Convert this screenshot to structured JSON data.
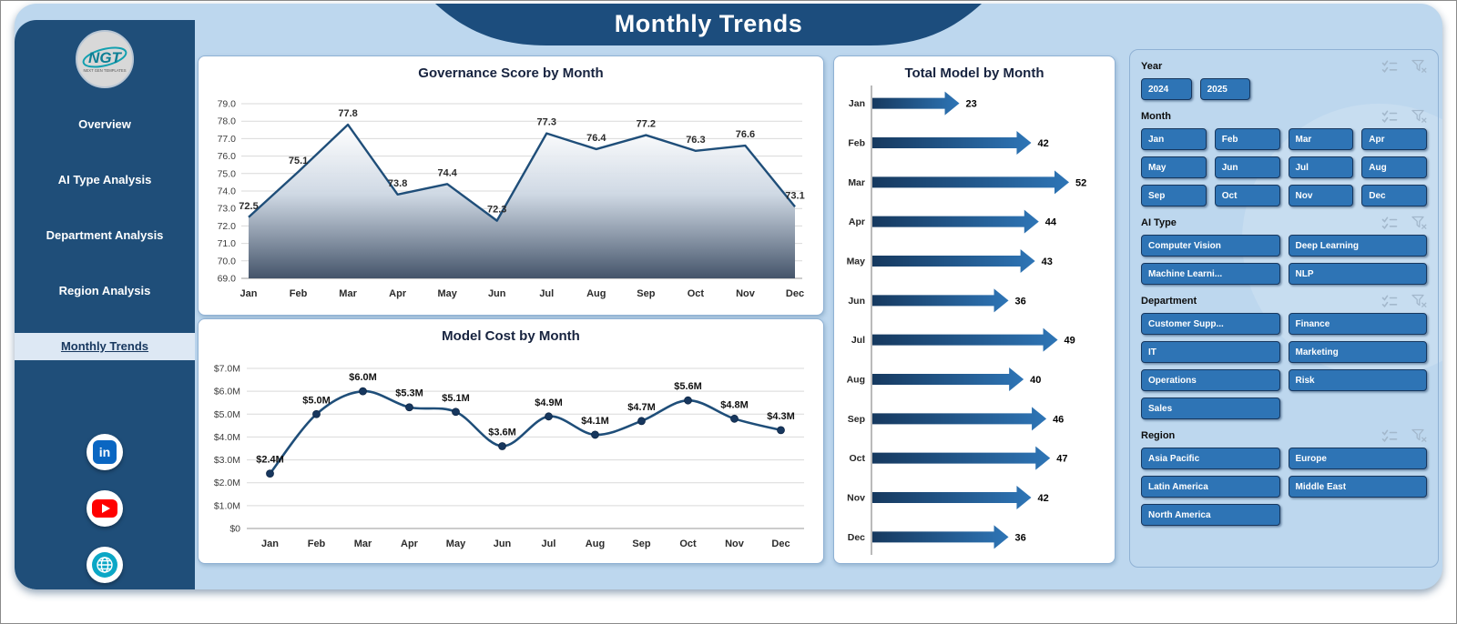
{
  "header": {
    "title": "Monthly Trends"
  },
  "theme": {
    "background": "#bdd7ee",
    "sidebar": "#1f4e79",
    "banner": "#1c4d7d",
    "button": "#2e74b5",
    "button_border": "#17375e",
    "panel_border": "#8fb1d4",
    "accent_text": "#17233f"
  },
  "sidebar": {
    "logo_text": "NGT",
    "logo_subtext": "NEXT GEN TEMPLATES",
    "items": [
      {
        "label": "Overview",
        "active": false
      },
      {
        "label": "AI Type Analysis",
        "active": false
      },
      {
        "label": "Department Analysis",
        "active": false
      },
      {
        "label": "Region Analysis",
        "active": false
      },
      {
        "label": "Monthly Trends",
        "active": true
      }
    ],
    "social": [
      {
        "name": "linkedin"
      },
      {
        "name": "youtube"
      },
      {
        "name": "website"
      }
    ]
  },
  "chart_data": [
    {
      "type": "area",
      "title": "Governance Score by Month",
      "categories": [
        "Jan",
        "Feb",
        "Mar",
        "Apr",
        "May",
        "Jun",
        "Jul",
        "Aug",
        "Sep",
        "Oct",
        "Nov",
        "Dec"
      ],
      "values": [
        72.5,
        75.1,
        77.8,
        73.8,
        74.4,
        72.3,
        77.3,
        76.4,
        77.2,
        76.3,
        76.6,
        73.1
      ],
      "labels": [
        "72.5",
        "75.1",
        "77.8",
        "73.8",
        "74.4",
        "72.3",
        "77.3",
        "76.4",
        "77.2",
        "76.3",
        "76.6",
        "73.1"
      ],
      "ylim": [
        69,
        79
      ],
      "yticks": [
        "69.0",
        "70.0",
        "71.0",
        "72.0",
        "73.0",
        "74.0",
        "75.0",
        "76.0",
        "77.0",
        "78.0",
        "79.0"
      ],
      "grid": true,
      "legend": "none",
      "line_color": "#1f4e79",
      "area_top_color": "#ffffff",
      "area_bottom_color": "#44546a"
    },
    {
      "type": "line",
      "title": "Model Cost by Month",
      "categories": [
        "Jan",
        "Feb",
        "Mar",
        "Apr",
        "May",
        "Jun",
        "Jul",
        "Aug",
        "Sep",
        "Oct",
        "Nov",
        "Dec"
      ],
      "values": [
        2.4,
        5.0,
        6.0,
        5.3,
        5.1,
        3.6,
        4.9,
        4.1,
        4.7,
        5.6,
        4.8,
        4.3
      ],
      "labels": [
        "$2.4M",
        "$5.0M",
        "$6.0M",
        "$5.3M",
        "$5.1M",
        "$3.6M",
        "$4.9M",
        "$4.1M",
        "$4.7M",
        "$5.6M",
        "$4.8M",
        "$4.3M"
      ],
      "ylim": [
        0,
        7
      ],
      "yticks": [
        "$0",
        "$1.0M",
        "$2.0M",
        "$3.0M",
        "$4.0M",
        "$5.0M",
        "$6.0M",
        "$7.0M"
      ],
      "grid": true,
      "legend": "none",
      "line_color": "#1f4e79",
      "marker_color": "#17375e"
    },
    {
      "type": "bar",
      "orientation": "horizontal-arrow",
      "title": "Total Model by Month",
      "categories": [
        "Jan",
        "Feb",
        "Mar",
        "Apr",
        "May",
        "Jun",
        "Jul",
        "Aug",
        "Sep",
        "Oct",
        "Nov",
        "Dec"
      ],
      "values": [
        23,
        42,
        52,
        44,
        43,
        36,
        49,
        40,
        46,
        47,
        42,
        36
      ],
      "xlim": [
        0,
        52
      ],
      "grid": false,
      "legend": "none",
      "arrow_color_start": "#16395f",
      "arrow_color_end": "#2e75b6"
    }
  ],
  "slicers": [
    {
      "title": "Year",
      "columns": 5,
      "options": [
        "2024",
        "2025"
      ]
    },
    {
      "title": "Month",
      "columns": 4,
      "options": [
        "Jan",
        "Feb",
        "Mar",
        "Apr",
        "May",
        "Jun",
        "Jul",
        "Aug",
        "Sep",
        "Oct",
        "Nov",
        "Dec"
      ]
    },
    {
      "title": "AI Type",
      "columns": 2,
      "options": [
        "Computer Vision",
        "Deep Learning",
        "Machine Learni...",
        "NLP"
      ]
    },
    {
      "title": "Department",
      "columns": 2,
      "options": [
        "Customer Supp...",
        "Finance",
        "IT",
        "Marketing",
        "Operations",
        "Risk",
        "Sales"
      ]
    },
    {
      "title": "Region",
      "columns": 2,
      "options": [
        "Asia Pacific",
        "Europe",
        "Latin America",
        "Middle East",
        "North America"
      ]
    }
  ]
}
